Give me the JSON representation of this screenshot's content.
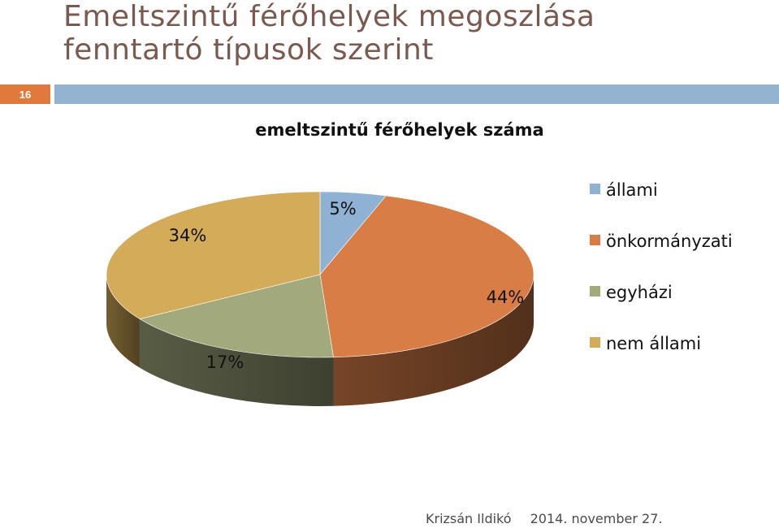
{
  "slide": {
    "title_line1": "Emeltszintű férőhelyek megoszlása",
    "title_line2": "fenntartó típusok szerint",
    "number": "16",
    "footer_author": "Krizsán Ildikó",
    "footer_date": "2014. november 27."
  },
  "chart_data": {
    "type": "pie",
    "title": "emeltszintű férőhelyek száma",
    "categories": [
      "állami",
      "önkormányzati",
      "egyházi",
      "nem állami"
    ],
    "values": [
      5,
      44,
      17,
      34
    ],
    "labels": [
      "5%",
      "44%",
      "17%",
      "34%"
    ],
    "colors": [
      "#8fb1d3",
      "#d97d47",
      "#a2a97d",
      "#d4ac59"
    ],
    "legend_position": "right",
    "style": "3d"
  }
}
